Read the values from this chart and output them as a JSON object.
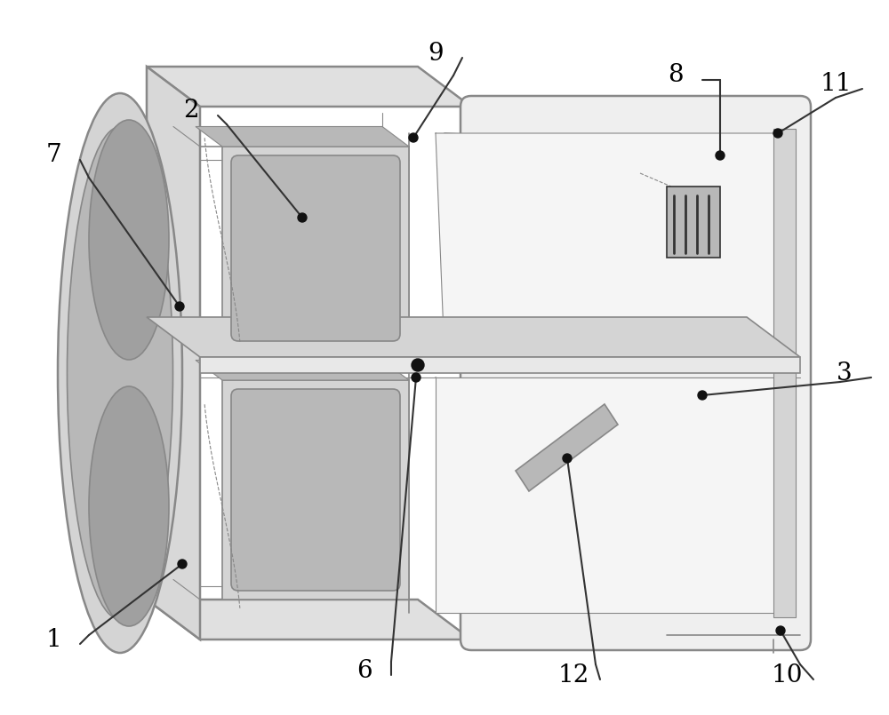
{
  "bg_color": "#ffffff",
  "line_color": "#888888",
  "dark_line_color": "#333333",
  "label_color": "#000000",
  "figsize": [
    10.0,
    8.05
  ],
  "dpi": 100,
  "lw_outer": 1.8,
  "lw_inner": 1.2,
  "lw_thin": 0.8,
  "gray_light": "#e8e8e8",
  "gray_mid": "#d4d4d4",
  "gray_dark": "#b8b8b8",
  "gray_darker": "#a0a0a0",
  "face_fill": "#efefef",
  "top_fill": "#e0e0e0",
  "left_fill": "#d8d8d8"
}
